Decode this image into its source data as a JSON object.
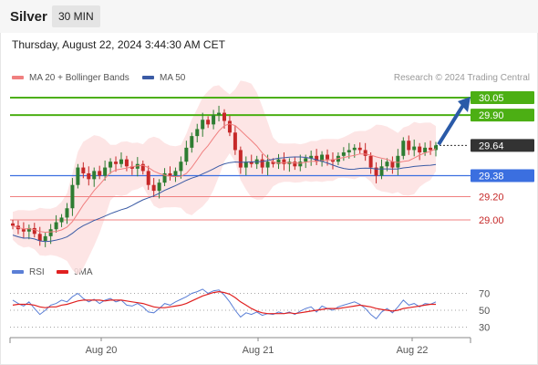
{
  "header": {
    "title": "Silver",
    "timeframe": "30 MIN",
    "datetime": "Thursday, August 22, 2024 3:44:30 AM CET"
  },
  "legend": {
    "bollinger_label": "MA 20 + Bollinger Bands",
    "ma50_label": "MA 50",
    "credit": "Research © 2024 Trading Central"
  },
  "rsi_legend": {
    "rsi_label": "RSI",
    "ma9_label": "9MA"
  },
  "colors": {
    "up_candle": "#2e7d32",
    "down_candle": "#c62828",
    "bollinger_fill": "#fde0e0",
    "ma20": "#f08080",
    "ma50": "#3b5ba5",
    "resistance": "#4caf14",
    "pivot": "#3b6fe0",
    "support": "#f08080",
    "arrow": "#2a5aa8",
    "rsi": "#5b7fd6",
    "rsi_ma": "#e02020"
  },
  "chart_data": [
    {
      "type": "candlestick",
      "instrument": "Silver",
      "interval": "30 MIN",
      "x_tick_labels": [
        "Aug 20",
        "Aug 21",
        "Aug 22"
      ],
      "y_range": [
        28.5,
        30.2
      ],
      "current_price": 29.64,
      "levels": [
        {
          "label": "30.05",
          "value": 30.05,
          "kind": "resistance"
        },
        {
          "label": "29.90",
          "value": 29.9,
          "kind": "resistance"
        },
        {
          "label": "29.64",
          "value": 29.64,
          "kind": "current"
        },
        {
          "label": "29.38",
          "value": 29.38,
          "kind": "pivot"
        },
        {
          "label": "29.20",
          "value": 29.2,
          "kind": "support"
        },
        {
          "label": "29.00",
          "value": 29.0,
          "kind": "support"
        }
      ],
      "series": [
        {
          "name": "MA 20 + Bollinger Bands"
        },
        {
          "name": "MA 50"
        }
      ],
      "close_path": [
        28.95,
        28.92,
        28.9,
        28.93,
        28.88,
        28.82,
        28.86,
        28.92,
        28.98,
        29.02,
        29.1,
        29.3,
        29.45,
        29.4,
        29.35,
        29.42,
        29.38,
        29.45,
        29.5,
        29.48,
        29.52,
        29.46,
        29.44,
        29.48,
        29.42,
        29.3,
        29.25,
        29.32,
        29.4,
        29.38,
        29.42,
        29.5,
        29.62,
        29.72,
        29.78,
        29.86,
        29.82,
        29.9,
        29.92,
        29.85,
        29.75,
        29.6,
        29.45,
        29.5,
        29.48,
        29.52,
        29.45,
        29.5,
        29.48,
        29.52,
        29.48,
        29.5,
        29.46,
        29.5,
        29.53,
        29.55,
        29.5,
        29.56,
        29.52,
        29.5,
        29.55,
        29.58,
        29.6,
        29.62,
        29.6,
        29.55,
        29.45,
        29.38,
        29.46,
        29.5,
        29.45,
        29.55,
        29.68,
        29.6,
        29.63,
        29.58,
        29.62,
        29.6,
        29.64
      ]
    },
    {
      "type": "line",
      "title": "RSI",
      "y_tick_labels": [
        "70",
        "50",
        "30"
      ],
      "y_range": [
        20,
        80
      ],
      "series": [
        {
          "name": "RSI",
          "values": [
            62,
            58,
            55,
            60,
            52,
            45,
            50,
            56,
            58,
            62,
            60,
            66,
            70,
            64,
            60,
            63,
            58,
            62,
            64,
            60,
            62,
            56,
            55,
            58,
            54,
            48,
            47,
            52,
            58,
            56,
            60,
            63,
            66,
            70,
            72,
            75,
            70,
            73,
            74,
            68,
            60,
            50,
            42,
            47,
            45,
            48,
            44,
            46,
            45,
            48,
            46,
            48,
            45,
            49,
            52,
            54,
            48,
            55,
            52,
            50,
            54,
            56,
            58,
            60,
            57,
            52,
            45,
            40,
            48,
            52,
            47,
            54,
            62,
            56,
            58,
            54,
            58,
            57,
            60
          ]
        },
        {
          "name": "9MA",
          "values": [
            56,
            57,
            57,
            57,
            56,
            54,
            53,
            54,
            54,
            56,
            57,
            59,
            61,
            62,
            62,
            62,
            62,
            61,
            62,
            62,
            62,
            61,
            60,
            59,
            58,
            56,
            54,
            53,
            53,
            54,
            55,
            56,
            58,
            61,
            64,
            67,
            69,
            71,
            72,
            71,
            69,
            65,
            60,
            56,
            52,
            49,
            47,
            46,
            46,
            46,
            46,
            47,
            46,
            47,
            48,
            49,
            50,
            51,
            52,
            52,
            52,
            53,
            54,
            55,
            56,
            55,
            54,
            52,
            51,
            50,
            49,
            50,
            52,
            53,
            54,
            55,
            56,
            57,
            57
          ]
        }
      ]
    }
  ]
}
